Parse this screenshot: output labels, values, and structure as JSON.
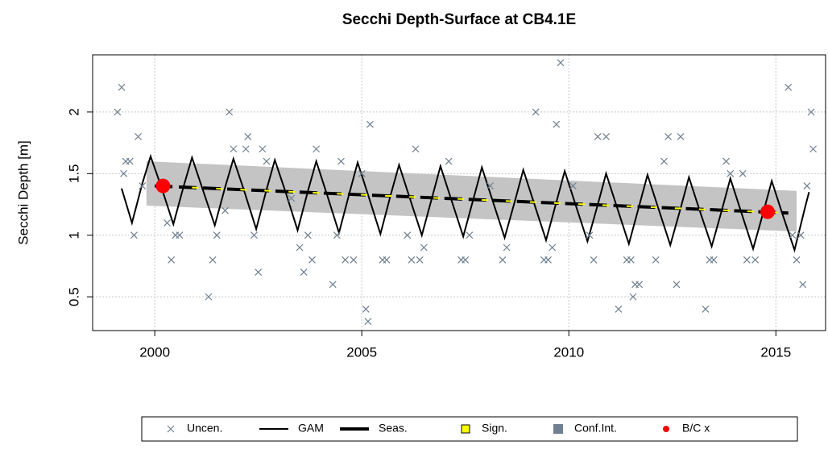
{
  "chart_data": {
    "type": "line",
    "title": "Secchi Depth-Surface at CB4.1E",
    "y_label": "Secchi Depth [m]",
    "xlim": [
      1998.5,
      2016.2
    ],
    "ylim": [
      0.226,
      2.464
    ],
    "xticks": [
      2000,
      2005,
      2010,
      2015
    ],
    "yticks": [
      0.5,
      1,
      1.5,
      2
    ],
    "grid": true,
    "legend": "bottom",
    "series": [
      {
        "name": "Uncen.",
        "type": "scatter",
        "color": "#708090",
        "x": [
          1999.1,
          1999.2,
          1999.25,
          1999.3,
          1999.4,
          1999.5,
          1999.6,
          1999.7,
          2000.3,
          2000.4,
          2000.5,
          2000.6,
          2001.3,
          2001.4,
          2001.5,
          2001.7,
          2001.8,
          2001.9,
          2002.2,
          2002.25,
          2002.4,
          2002.5,
          2002.6,
          2002.7,
          2003.3,
          2003.5,
          2003.6,
          2003.7,
          2003.8,
          2003.9,
          2004.3,
          2004.4,
          2004.5,
          2004.6,
          2004.8,
          2005.0,
          2005.1,
          2005.15,
          2005.2,
          2005.5,
          2005.6,
          2006.1,
          2006.2,
          2006.3,
          2006.4,
          2006.5,
          2007.1,
          2007.4,
          2007.5,
          2007.6,
          2008.1,
          2008.4,
          2008.5,
          2009.2,
          2009.4,
          2009.5,
          2009.6,
          2009.7,
          2009.8,
          2010.1,
          2010.5,
          2010.6,
          2010.7,
          2010.9,
          2011.2,
          2011.4,
          2011.5,
          2011.55,
          2011.6,
          2011.7,
          2012.1,
          2012.3,
          2012.4,
          2012.6,
          2012.7,
          2013.3,
          2013.4,
          2013.5,
          2013.8,
          2013.9,
          2014.2,
          2014.3,
          2014.5,
          2015.3,
          2015.4,
          2015.5,
          2015.6,
          2015.65,
          2015.75,
          2015.85,
          2015.9
        ],
        "values": [
          2.0,
          2.2,
          1.5,
          1.6,
          1.6,
          1.0,
          1.8,
          1.4,
          1.1,
          0.8,
          1.0,
          1.0,
          0.5,
          0.8,
          1.0,
          1.2,
          2.0,
          1.7,
          1.7,
          1.8,
          1.0,
          0.7,
          1.7,
          1.6,
          1.3,
          0.9,
          0.7,
          1.0,
          0.8,
          1.7,
          0.6,
          1.0,
          1.6,
          0.8,
          0.8,
          1.5,
          0.4,
          0.3,
          1.9,
          0.8,
          0.8,
          1.0,
          0.8,
          1.7,
          0.8,
          0.9,
          1.6,
          0.8,
          0.8,
          1.0,
          1.4,
          0.8,
          0.9,
          2.0,
          0.8,
          0.8,
          0.9,
          1.9,
          2.4,
          1.4,
          1.0,
          0.8,
          1.8,
          1.8,
          0.4,
          0.8,
          0.8,
          0.5,
          0.6,
          0.6,
          0.8,
          1.6,
          1.8,
          0.6,
          1.8,
          0.4,
          0.8,
          0.8,
          1.6,
          1.5,
          1.5,
          0.8,
          0.8,
          2.2,
          1.0,
          0.8,
          1.0,
          0.6,
          1.4,
          2.0,
          1.7
        ]
      },
      {
        "name": "GAM",
        "type": "line",
        "color": "#000000",
        "x": [
          1999.2,
          1999.45,
          1999.7,
          1999.9,
          2000.15,
          2000.45,
          2000.7,
          2000.9,
          2001.15,
          2001.45,
          2001.7,
          2001.9,
          2002.15,
          2002.45,
          2002.7,
          2002.9,
          2003.15,
          2003.45,
          2003.7,
          2003.9,
          2004.15,
          2004.45,
          2004.7,
          2004.9,
          2005.15,
          2005.45,
          2005.7,
          2005.9,
          2006.15,
          2006.45,
          2006.7,
          2006.9,
          2007.15,
          2007.45,
          2007.7,
          2007.9,
          2008.15,
          2008.45,
          2008.7,
          2008.9,
          2009.15,
          2009.45,
          2009.7,
          2009.9,
          2010.15,
          2010.45,
          2010.7,
          2010.9,
          2011.15,
          2011.45,
          2011.7,
          2011.9,
          2012.15,
          2012.45,
          2012.7,
          2012.9,
          2013.15,
          2013.45,
          2013.7,
          2013.9,
          2014.15,
          2014.45,
          2014.7,
          2014.9,
          2015.15,
          2015.45,
          2015.7,
          2015.8
        ],
        "values": [
          1.38,
          1.1,
          1.42,
          1.64,
          1.4,
          1.09,
          1.4,
          1.63,
          1.38,
          1.08,
          1.39,
          1.62,
          1.37,
          1.05,
          1.37,
          1.61,
          1.36,
          1.04,
          1.36,
          1.6,
          1.34,
          1.02,
          1.34,
          1.59,
          1.33,
          1.01,
          1.33,
          1.57,
          1.31,
          1.0,
          1.31,
          1.56,
          1.3,
          0.99,
          1.3,
          1.55,
          1.29,
          0.98,
          1.28,
          1.53,
          1.27,
          0.96,
          1.27,
          1.52,
          1.26,
          0.95,
          1.25,
          1.5,
          1.24,
          0.93,
          1.24,
          1.49,
          1.23,
          0.92,
          1.22,
          1.47,
          1.21,
          0.91,
          1.21,
          1.46,
          1.2,
          0.89,
          1.19,
          1.44,
          1.18,
          0.88,
          1.22,
          1.35
        ]
      },
      {
        "name": "Seas.",
        "type": "dashed",
        "color": "#000000",
        "x": [
          2000,
          2015.3
        ],
        "values": [
          1.4,
          1.18
        ]
      },
      {
        "name": "Sign.",
        "type": "dashed",
        "color": "#ffff00",
        "x": [
          2000.9,
          2015.3
        ],
        "values": [
          1.387,
          1.18
        ]
      },
      {
        "name": "Conf.Int.",
        "type": "band",
        "color": "#c4c4c4",
        "x": [
          1999.8,
          2015.5
        ],
        "upper": [
          1.6,
          1.36
        ],
        "lower": [
          1.24,
          1.03
        ]
      },
      {
        "name": "B/C x",
        "type": "points",
        "color": "#ff0000",
        "x": [
          2000.2,
          2014.8
        ],
        "values": [
          1.4,
          1.19
        ]
      }
    ]
  }
}
